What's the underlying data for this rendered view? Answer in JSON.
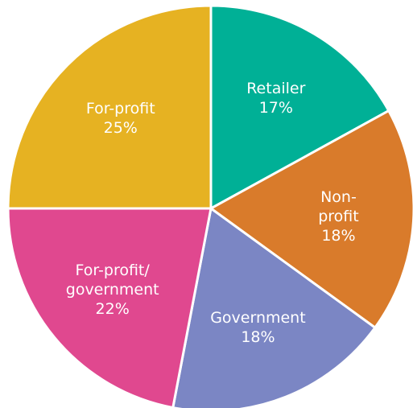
{
  "chart_data": {
    "type": "pie",
    "categories": [
      "Retailer",
      "Non-profit",
      "Government",
      "For-profit/\ngovernment",
      "For-profit"
    ],
    "values": [
      17,
      18,
      18,
      22,
      25
    ],
    "value_labels": [
      "17%",
      "18%",
      "18%",
      "22%",
      "25%"
    ],
    "colors": [
      "#00b096",
      "#d97b2b",
      "#7b86c4",
      "#e0488f",
      "#e6b222"
    ]
  }
}
